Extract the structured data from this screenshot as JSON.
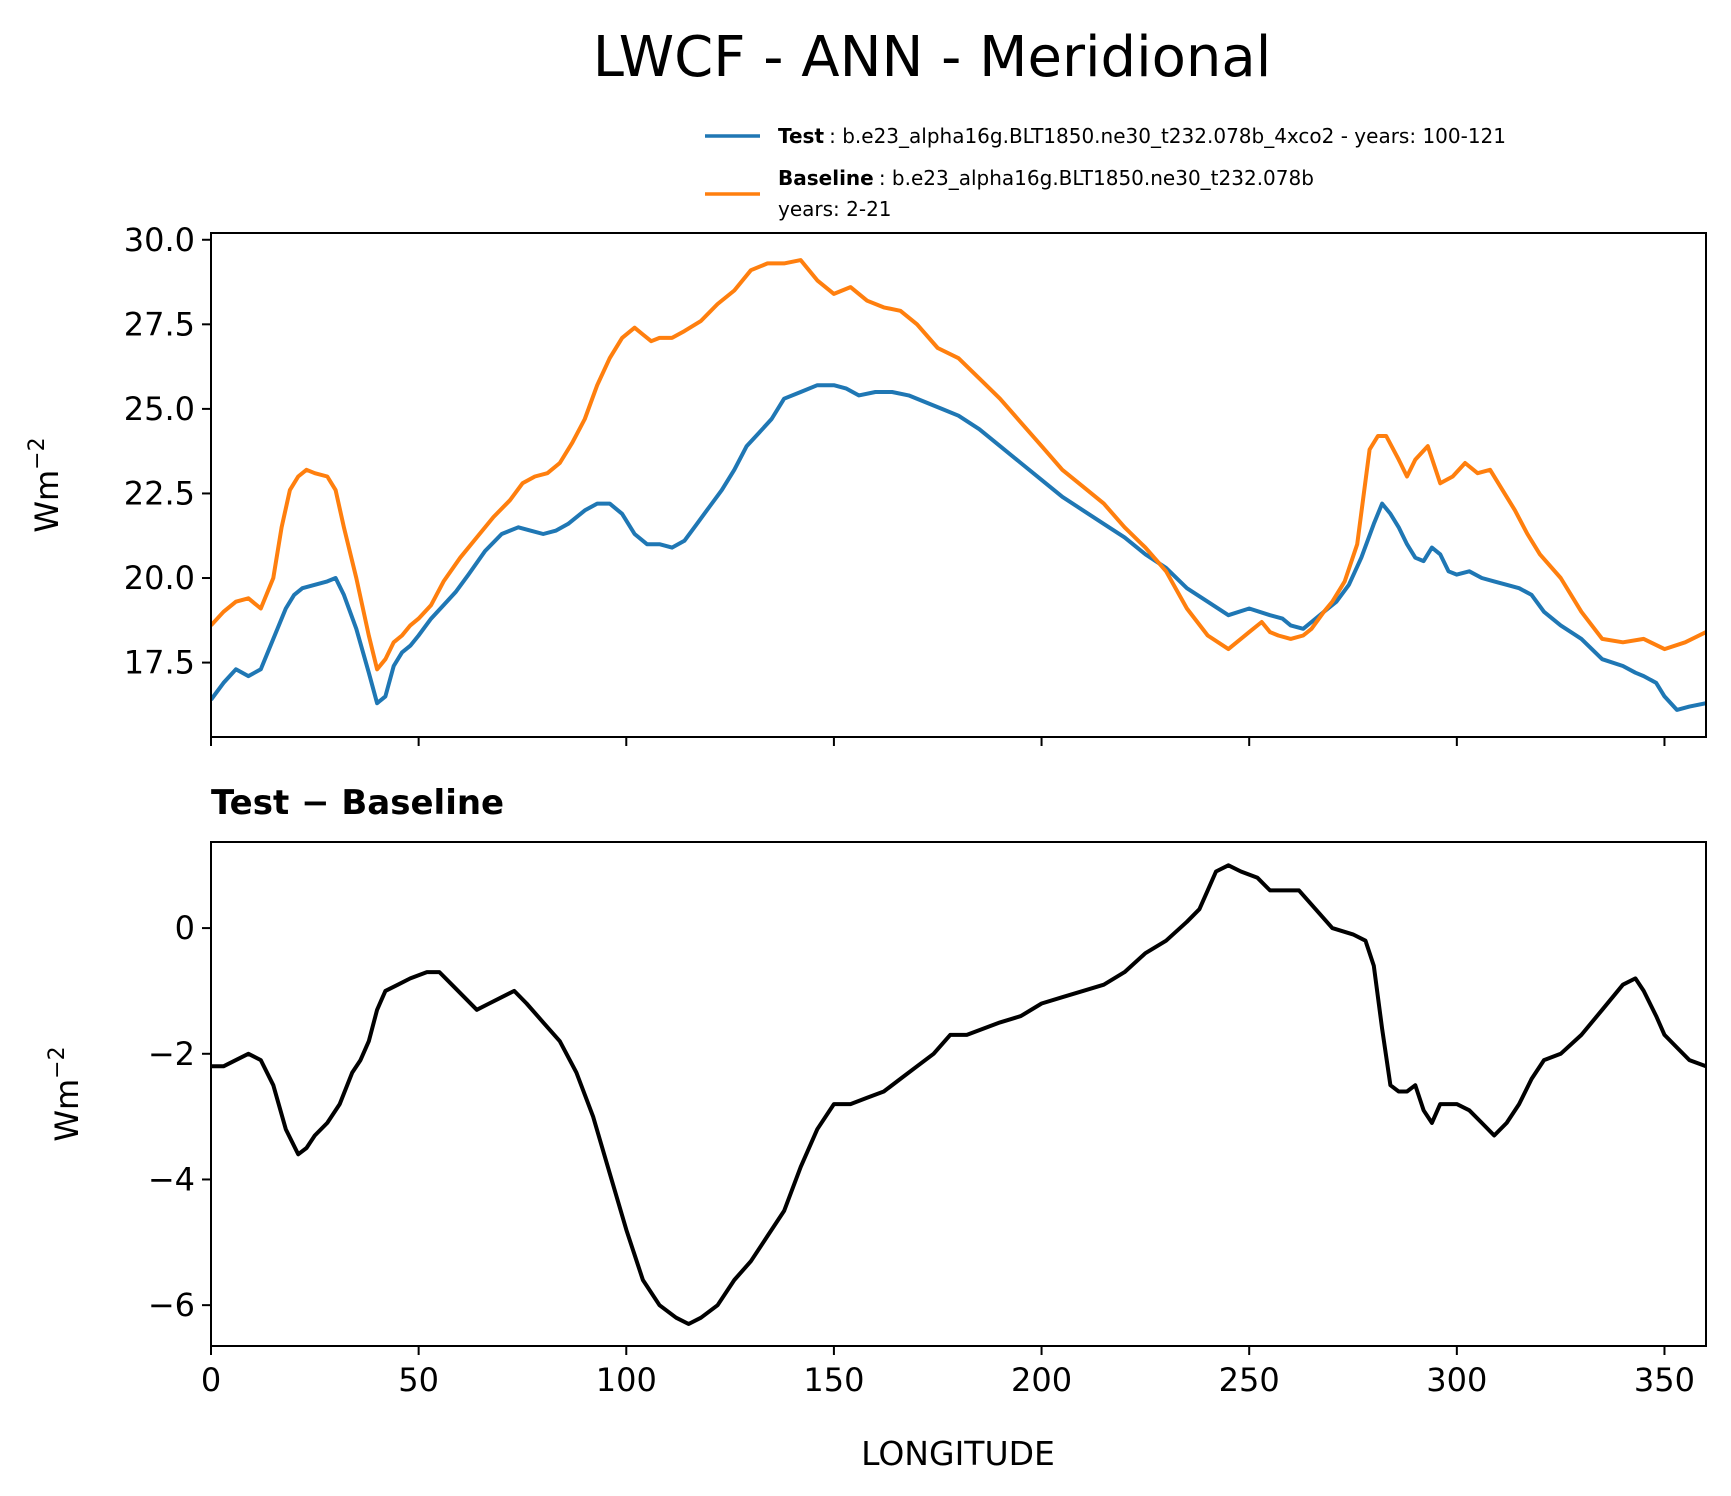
{
  "chart_data": [
    {
      "type": "line",
      "title": "LWCF - ANN - Meridional",
      "ylabel": "Wm",
      "ylabel_exp": "−2",
      "xlim": [
        0,
        360
      ],
      "ylim": [
        15.3,
        30.2
      ],
      "yticks": [
        "30.0",
        "27.5",
        "25.0",
        "22.5",
        "20.0",
        "17.5"
      ],
      "ytick_values": [
        30.0,
        27.5,
        25.0,
        22.5,
        20.0,
        17.5
      ],
      "xtick_values": [
        0,
        50,
        100,
        150,
        200,
        250,
        300,
        350
      ],
      "legend_position": "top-right",
      "series": [
        {
          "name": "Test",
          "label_text": ": b.e23_alpha16g.BLT1850.ne30_t232.078b_4xco2 - years: 100-121",
          "color": "#1f77b4",
          "x": [
            0,
            3,
            6,
            9,
            12,
            15,
            18,
            20,
            22,
            25,
            28,
            30,
            32,
            35,
            38,
            40,
            42,
            44,
            46,
            48,
            50,
            53,
            56,
            59,
            62,
            66,
            70,
            74,
            77,
            80,
            83,
            86,
            90,
            93,
            96,
            99,
            102,
            105,
            108,
            111,
            114,
            117,
            120,
            123,
            126,
            129,
            132,
            135,
            138,
            142,
            146,
            150,
            153,
            156,
            160,
            164,
            168,
            172,
            176,
            180,
            185,
            190,
            195,
            200,
            205,
            210,
            215,
            220,
            225,
            230,
            235,
            240,
            245,
            250,
            255,
            258,
            260,
            263,
            265,
            268,
            271,
            274,
            277,
            280,
            282,
            284,
            286,
            288,
            290,
            292,
            294,
            296,
            298,
            300,
            303,
            306,
            309,
            312,
            315,
            318,
            321,
            325,
            330,
            335,
            340,
            343,
            345,
            348,
            350,
            353,
            356,
            360
          ],
          "values": [
            16.4,
            16.9,
            17.3,
            17.1,
            17.3,
            18.2,
            19.1,
            19.5,
            19.7,
            19.8,
            19.9,
            20.0,
            19.5,
            18.5,
            17.2,
            16.3,
            16.5,
            17.4,
            17.8,
            18.0,
            18.3,
            18.8,
            19.2,
            19.6,
            20.1,
            20.8,
            21.3,
            21.5,
            21.4,
            21.3,
            21.4,
            21.6,
            22.0,
            22.2,
            22.2,
            21.9,
            21.3,
            21.0,
            21.0,
            20.9,
            21.1,
            21.6,
            22.1,
            22.6,
            23.2,
            23.9,
            24.3,
            24.7,
            25.3,
            25.5,
            25.7,
            25.7,
            25.6,
            25.4,
            25.5,
            25.5,
            25.4,
            25.2,
            25.0,
            24.8,
            24.4,
            23.9,
            23.4,
            22.9,
            22.4,
            22.0,
            21.6,
            21.2,
            20.7,
            20.3,
            19.7,
            19.3,
            18.9,
            19.1,
            18.9,
            18.8,
            18.6,
            18.5,
            18.7,
            19.0,
            19.3,
            19.8,
            20.6,
            21.6,
            22.2,
            21.9,
            21.5,
            21.0,
            20.6,
            20.5,
            20.9,
            20.7,
            20.2,
            20.1,
            20.2,
            20.0,
            19.9,
            19.8,
            19.7,
            19.5,
            19.0,
            18.6,
            18.2,
            17.6,
            17.4,
            17.2,
            17.1,
            16.9,
            16.5,
            16.1,
            16.2,
            16.3
          ]
        },
        {
          "name": "Baseline",
          "label_text": ": b.e23_alpha16g.BLT1850.ne30_t232.078b",
          "label_text2": "years: 2-21",
          "color": "#ff7f0e",
          "x": [
            0,
            3,
            6,
            9,
            12,
            15,
            17,
            19,
            21,
            23,
            25,
            28,
            30,
            32,
            35,
            38,
            40,
            42,
            44,
            46,
            48,
            50,
            53,
            56,
            60,
            64,
            68,
            72,
            75,
            78,
            81,
            84,
            87,
            90,
            93,
            96,
            99,
            102,
            104,
            106,
            108,
            111,
            114,
            118,
            122,
            126,
            130,
            134,
            138,
            142,
            146,
            150,
            154,
            158,
            162,
            166,
            170,
            175,
            180,
            185,
            190,
            195,
            200,
            205,
            210,
            215,
            220,
            225,
            230,
            235,
            240,
            245,
            250,
            253,
            255,
            257,
            260,
            263,
            265,
            268,
            270,
            273,
            276,
            279,
            281,
            283,
            286,
            288,
            290,
            293,
            296,
            299,
            302,
            305,
            308,
            311,
            314,
            317,
            320,
            325,
            330,
            335,
            340,
            345,
            350,
            355,
            360
          ],
          "values": [
            18.6,
            19.0,
            19.3,
            19.4,
            19.1,
            20.0,
            21.5,
            22.6,
            23.0,
            23.2,
            23.1,
            23.0,
            22.6,
            21.5,
            20.0,
            18.3,
            17.3,
            17.6,
            18.1,
            18.3,
            18.6,
            18.8,
            19.2,
            19.9,
            20.6,
            21.2,
            21.8,
            22.3,
            22.8,
            23.0,
            23.1,
            23.4,
            24.0,
            24.7,
            25.7,
            26.5,
            27.1,
            27.4,
            27.2,
            27.0,
            27.1,
            27.1,
            27.3,
            27.6,
            28.1,
            28.5,
            29.1,
            29.3,
            29.3,
            29.4,
            28.8,
            28.4,
            28.6,
            28.2,
            28.0,
            27.9,
            27.5,
            26.8,
            26.5,
            25.9,
            25.3,
            24.6,
            23.9,
            23.2,
            22.7,
            22.2,
            21.5,
            20.9,
            20.2,
            19.1,
            18.3,
            17.9,
            18.4,
            18.7,
            18.4,
            18.3,
            18.2,
            18.3,
            18.5,
            19.0,
            19.3,
            19.9,
            21.0,
            23.8,
            24.2,
            24.2,
            23.5,
            23.0,
            23.5,
            23.9,
            22.8,
            23.0,
            23.4,
            23.1,
            23.2,
            22.6,
            22.0,
            21.3,
            20.7,
            20.0,
            19.0,
            18.2,
            18.1,
            18.2,
            17.9,
            18.1,
            18.4
          ]
        }
      ]
    },
    {
      "type": "line",
      "title": "Test − Baseline",
      "ylabel": "Wm",
      "ylabel_exp": "−2",
      "xlabel": "LONGITUDE",
      "xlim": [
        0,
        360
      ],
      "ylim": [
        -6.65,
        1.37
      ],
      "yticks": [
        "0",
        "−2",
        "−4",
        "−6"
      ],
      "ytick_values": [
        0,
        -2,
        -4,
        -6
      ],
      "xticks": [
        "0",
        "50",
        "100",
        "150",
        "200",
        "250",
        "300",
        "350"
      ],
      "xtick_values": [
        0,
        50,
        100,
        150,
        200,
        250,
        300,
        350
      ],
      "series": [
        {
          "name": "Test - Baseline",
          "color": "#000000",
          "x": [
            0,
            3,
            6,
            9,
            12,
            15,
            18,
            21,
            23,
            25,
            28,
            31,
            34,
            36,
            38,
            40,
            42,
            45,
            48,
            52,
            55,
            58,
            61,
            64,
            67,
            70,
            73,
            76,
            80,
            84,
            88,
            92,
            96,
            100,
            104,
            108,
            112,
            115,
            118,
            122,
            126,
            130,
            134,
            138,
            142,
            146,
            150,
            154,
            158,
            162,
            166,
            170,
            174,
            178,
            182,
            186,
            190,
            195,
            200,
            205,
            210,
            215,
            220,
            225,
            230,
            235,
            238,
            240,
            242,
            245,
            248,
            252,
            255,
            258,
            262,
            266,
            270,
            275,
            278,
            280,
            282,
            284,
            286,
            288,
            290,
            292,
            294,
            296,
            298,
            300,
            303,
            306,
            309,
            312,
            315,
            318,
            321,
            325,
            330,
            335,
            340,
            343,
            345,
            348,
            350,
            353,
            356,
            360
          ],
          "values": [
            -2.2,
            -2.2,
            -2.1,
            -2.0,
            -2.1,
            -2.5,
            -3.2,
            -3.6,
            -3.5,
            -3.3,
            -3.1,
            -2.8,
            -2.3,
            -2.1,
            -1.8,
            -1.3,
            -1.0,
            -0.9,
            -0.8,
            -0.7,
            -0.7,
            -0.9,
            -1.1,
            -1.3,
            -1.2,
            -1.1,
            -1.0,
            -1.2,
            -1.5,
            -1.8,
            -2.3,
            -3.0,
            -3.9,
            -4.8,
            -5.6,
            -6.0,
            -6.2,
            -6.3,
            -6.2,
            -6.0,
            -5.6,
            -5.3,
            -4.9,
            -4.5,
            -3.8,
            -3.2,
            -2.8,
            -2.8,
            -2.7,
            -2.6,
            -2.4,
            -2.2,
            -2.0,
            -1.7,
            -1.7,
            -1.6,
            -1.5,
            -1.4,
            -1.2,
            -1.1,
            -1.0,
            -0.9,
            -0.7,
            -0.4,
            -0.2,
            0.1,
            0.3,
            0.6,
            0.9,
            1.0,
            0.9,
            0.8,
            0.6,
            0.6,
            0.6,
            0.3,
            0.0,
            -0.1,
            -0.2,
            -0.6,
            -1.6,
            -2.5,
            -2.6,
            -2.6,
            -2.5,
            -2.9,
            -3.1,
            -2.8,
            -2.8,
            -2.8,
            -2.9,
            -3.1,
            -3.3,
            -3.1,
            -2.8,
            -2.4,
            -2.1,
            -2.0,
            -1.7,
            -1.3,
            -0.9,
            -0.8,
            -1.0,
            -1.4,
            -1.7,
            -1.9,
            -2.1,
            -2.2
          ]
        }
      ]
    }
  ]
}
